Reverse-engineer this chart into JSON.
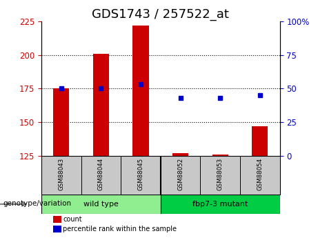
{
  "title": "GDS1743 / 257522_at",
  "samples": [
    "GSM88043",
    "GSM88044",
    "GSM88045",
    "GSM88052",
    "GSM88053",
    "GSM88054"
  ],
  "counts": [
    175,
    201,
    222,
    127,
    126,
    147
  ],
  "percentile_ranks": [
    50,
    50,
    53,
    43,
    43,
    45
  ],
  "ylim_left": [
    125,
    225
  ],
  "ylim_right": [
    0,
    100
  ],
  "yticks_left": [
    125,
    150,
    175,
    200,
    225
  ],
  "yticks_right": [
    0,
    25,
    50,
    75,
    100
  ],
  "groups": [
    {
      "label": "wild type",
      "samples": [
        "GSM88043",
        "GSM88044",
        "GSM88045"
      ],
      "color": "#90EE90"
    },
    {
      "label": "fbp7-3 mutant",
      "samples": [
        "GSM88052",
        "GSM88053",
        "GSM88054"
      ],
      "color": "#00CC00"
    }
  ],
  "bar_color": "#CC0000",
  "dot_color": "#0000CC",
  "bar_width": 0.4,
  "grid_color": "#000000",
  "background_plot": "#FFFFFF",
  "background_labels": "#C0C0C0",
  "legend_label_count": "count",
  "legend_label_percentile": "percentile rank within the sample",
  "genotype_label": "genotype/variation",
  "title_fontsize": 13,
  "axis_fontsize": 9,
  "tick_fontsize": 8.5
}
